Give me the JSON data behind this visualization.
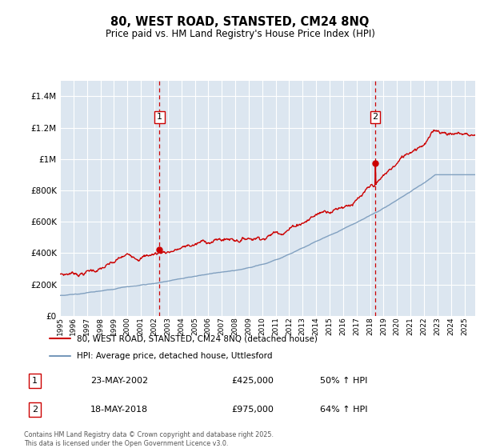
{
  "title": "80, WEST ROAD, STANSTED, CM24 8NQ",
  "subtitle": "Price paid vs. HM Land Registry's House Price Index (HPI)",
  "legend_line1": "80, WEST ROAD, STANSTED, CM24 8NQ (detached house)",
  "legend_line2": "HPI: Average price, detached house, Uttlesford",
  "footnote": "Contains HM Land Registry data © Crown copyright and database right 2025.\nThis data is licensed under the Open Government Licence v3.0.",
  "sale1_label": "1",
  "sale1_date": "23-MAY-2002",
  "sale1_price": "£425,000",
  "sale1_hpi": "50% ↑ HPI",
  "sale1_year": 2002.38,
  "sale1_value": 425000,
  "sale2_label": "2",
  "sale2_date": "18-MAY-2018",
  "sale2_price": "£975,000",
  "sale2_hpi": "64% ↑ HPI",
  "sale2_year": 2018.38,
  "sale2_value": 975000,
  "red_color": "#cc0000",
  "blue_color": "#7799bb",
  "bg_color": "#dce6f0",
  "grid_color": "#ffffff",
  "ylim": [
    0,
    1500000
  ],
  "xlim_start": 1995,
  "xlim_end": 2025.8,
  "yticks": [
    0,
    200000,
    400000,
    600000,
    800000,
    1000000,
    1200000,
    1400000
  ]
}
